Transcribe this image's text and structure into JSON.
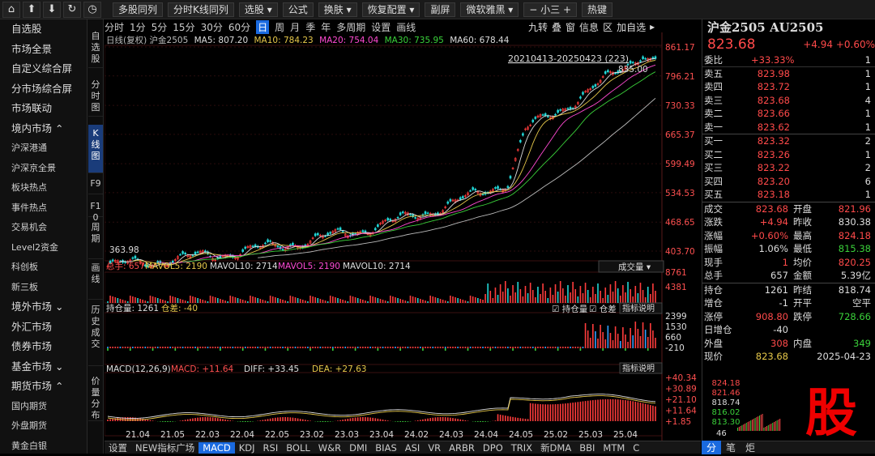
{
  "toolbar": {
    "icons": [
      "home-icon",
      "arrow-up-icon",
      "arrow-down-icon",
      "refresh-icon",
      "clock-icon"
    ],
    "buttons": [
      "多股同列",
      "分时K线同列",
      "选股 ▾",
      "公式",
      "换肤 ▾",
      "恢复配置 ▾",
      "副屏",
      "微软雅黑 ▾",
      "− 小三 +",
      "热键"
    ]
  },
  "sidebar": {
    "items": [
      {
        "label": "自选股",
        "sub": false
      },
      {
        "label": "市场全景",
        "sub": false
      },
      {
        "label": "自定义综合屏",
        "sub": false
      },
      {
        "label": "分市场综合屏",
        "sub": false
      },
      {
        "label": "市场联动",
        "sub": false
      },
      {
        "label": "境内市场 ⌃",
        "sub": false
      },
      {
        "label": "沪深港通",
        "sub": true
      },
      {
        "label": "沪深京全景",
        "sub": true
      },
      {
        "label": "板块热点",
        "sub": true
      },
      {
        "label": "事件热点",
        "sub": true
      },
      {
        "label": "交易机会",
        "sub": true
      },
      {
        "label": "Level2资金",
        "sub": true
      },
      {
        "label": "科创板",
        "sub": true
      },
      {
        "label": "新三板",
        "sub": true
      },
      {
        "label": "境外市场 ⌄",
        "sub": false
      },
      {
        "label": "外汇市场",
        "sub": false
      },
      {
        "label": "债券市场",
        "sub": false
      },
      {
        "label": "基金市场 ⌄",
        "sub": false
      },
      {
        "label": "期货市场 ⌃",
        "sub": false
      },
      {
        "label": "国内期货",
        "sub": true
      },
      {
        "label": "外盘期货",
        "sub": true
      },
      {
        "label": "黄金白银",
        "sub": true
      }
    ]
  },
  "vtabs": [
    "自选股",
    "分时图",
    "K线图",
    "F9",
    "F10",
    "周期",
    "画线",
    "历史成交",
    "价量分布"
  ],
  "period": {
    "items": [
      "分时",
      "1分",
      "5分",
      "15分",
      "30分",
      "60分",
      "日",
      "周",
      "月",
      "季",
      "年",
      "多周期",
      "设置",
      "画线"
    ],
    "active": "日",
    "right": [
      "九转",
      "叠",
      "窗",
      "信息",
      "区",
      "加自选",
      "▸"
    ]
  },
  "ma": {
    "title": "日线(复权) 沪金2505",
    "ma5": "MA5: 807.20",
    "ma10": "MA10: 784.23",
    "ma20": "MA20: 754.04",
    "ma30": "MA30: 735.95",
    "ma60": "MA60: 678.44",
    "range": "20210413-20250423 (223)",
    "high": "835.00",
    "low": "363.98"
  },
  "price_axis": [
    "861.17",
    "796.21",
    "730.33",
    "665.37",
    "599.49",
    "534.53",
    "468.65",
    "403.70"
  ],
  "volume": {
    "label": "总手: 657",
    "mavol5": "MAVOL5: 2190",
    "mavol10": "MAVOL10: 2714",
    "mavol5b": "MAVOL5: 2190",
    "mavol10b": "MAVOL10: 2714",
    "dropdown": "成交量 ▾",
    "axis": [
      "8761",
      "4381"
    ]
  },
  "oi": {
    "label": "持仓量: 1261",
    "diff": "仓差: -40",
    "chk1": "☑ 持仓量",
    "chk2": "☑ 仓差",
    "btn": "指标说明",
    "axis": [
      "2399",
      "1530",
      "660",
      "-210"
    ]
  },
  "macd": {
    "label": "MACD(12,26,9)",
    "macd": "MACD: +11.64",
    "diff": "DIFF: +33.45",
    "dea": "DEA: +27.63",
    "btn": "指标说明",
    "axis": [
      "+40.34",
      "+30.89",
      "+21.10",
      "+11.64",
      "+1.85"
    ]
  },
  "dates": [
    "21.04",
    "21.05",
    "22.03",
    "22.04",
    "22.05",
    "23.02",
    "23.03",
    "23.04",
    "24.02",
    "24.03",
    "24.04",
    "24.05",
    "25.02",
    "25.03",
    "25.04"
  ],
  "bottom": {
    "items": [
      "设置",
      "NEW指标广场",
      "MACD",
      "KDJ",
      "RSI",
      "BOLL",
      "W&R",
      "DMI",
      "BIAS",
      "ASI",
      "VR",
      "ARBR",
      "DPO",
      "TRIX",
      "新DMA",
      "BBI",
      "MTM",
      "C"
    ],
    "active": "MACD"
  },
  "quote": {
    "title": "沪金2505 AU2505",
    "price": "823.68",
    "change": "+4.94",
    "pct": "+0.60%",
    "weibi": {
      "label": "委比",
      "val": "+33.33%",
      "vol": "1"
    },
    "asks": [
      {
        "label": "卖五",
        "price": "823.98",
        "vol": "1"
      },
      {
        "label": "卖四",
        "price": "823.72",
        "vol": "1"
      },
      {
        "label": "卖三",
        "price": "823.68",
        "vol": "4"
      },
      {
        "label": "卖二",
        "price": "823.66",
        "vol": "1"
      },
      {
        "label": "卖一",
        "price": "823.62",
        "vol": "1"
      }
    ],
    "bids": [
      {
        "label": "买一",
        "price": "823.32",
        "vol": "2"
      },
      {
        "label": "买二",
        "price": "823.26",
        "vol": "1"
      },
      {
        "label": "买三",
        "price": "823.22",
        "vol": "2"
      },
      {
        "label": "买四",
        "price": "823.20",
        "vol": "6"
      },
      {
        "label": "买五",
        "price": "823.18",
        "vol": "1"
      }
    ],
    "stats": [
      {
        "l1": "成交",
        "v1": "823.68",
        "c1": "red",
        "l2": "开盘",
        "v2": "821.96",
        "c2": "red"
      },
      {
        "l1": "涨跌",
        "v1": "+4.94",
        "c1": "red",
        "l2": "昨收",
        "v2": "830.38",
        "c2": "white"
      },
      {
        "l1": "涨幅",
        "v1": "+0.60%",
        "c1": "red",
        "l2": "最高",
        "v2": "824.18",
        "c2": "red"
      },
      {
        "l1": "振幅",
        "v1": "1.06%",
        "c1": "white",
        "l2": "最低",
        "v2": "815.38",
        "c2": "green"
      },
      {
        "l1": "现手",
        "v1": "1",
        "c1": "red",
        "l2": "均价",
        "v2": "820.25",
        "c2": "red"
      },
      {
        "l1": "总手",
        "v1": "657",
        "c1": "white",
        "l2": "金额",
        "v2": "5.39亿",
        "c2": "white"
      }
    ],
    "stats2": [
      {
        "l1": "持仓",
        "v1": "1261",
        "c1": "white",
        "l2": "昨结",
        "v2": "818.74",
        "c2": "white"
      },
      {
        "l1": "增仓",
        "v1": "-1",
        "c1": "white",
        "l2": "开平",
        "v2": "空平",
        "c2": "white"
      },
      {
        "l1": "涨停",
        "v1": "908.80",
        "c1": "red",
        "l2": "跌停",
        "v2": "728.66",
        "c2": "green"
      },
      {
        "l1": "日增仓",
        "v1": "-40",
        "c1": "white",
        "l2": "",
        "v2": "",
        "c2": "white"
      },
      {
        "l1": "外盘",
        "v1": "308",
        "c1": "red",
        "l2": "内盘",
        "v2": "349",
        "c2": "green"
      },
      {
        "l1": "现价",
        "v1": "823.68",
        "c1": "yellow",
        "l2": "",
        "v2": "2025-04-23",
        "c2": "white"
      }
    ],
    "mini_prices": [
      "824.18",
      "821.46",
      "818.74",
      "816.02",
      "813.30"
    ],
    "mini_vol": "46",
    "bottom_tabs": [
      "分",
      "笔",
      "炬"
    ],
    "watermark": "股"
  }
}
